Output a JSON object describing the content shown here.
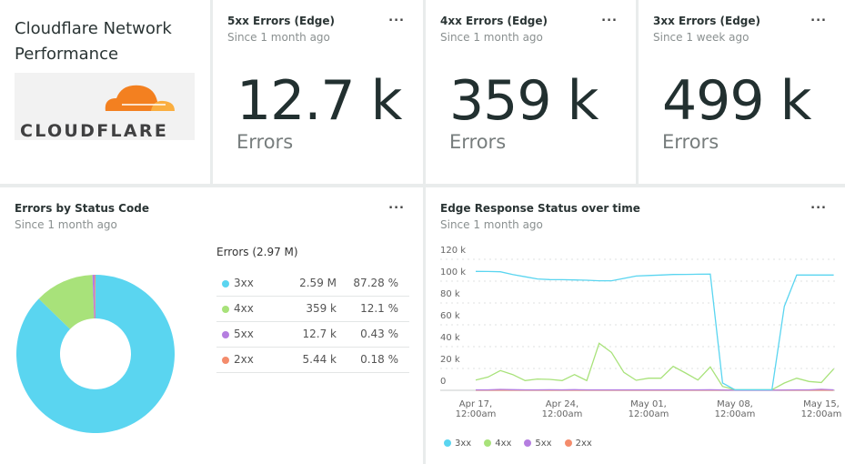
{
  "app": {
    "title": "Cloudflare Network Performance",
    "logo_text": "CLOUDFLARE"
  },
  "billboards": [
    {
      "title": "5xx Errors (Edge)",
      "subtitle": "Since 1 month ago",
      "value": "12.7 k",
      "unit": "Errors",
      "menu": "..."
    },
    {
      "title": "4xx Errors (Edge)",
      "subtitle": "Since 1 month ago",
      "value": "359 k",
      "unit": "Errors",
      "menu": "..."
    },
    {
      "title": "3xx Errors (Edge)",
      "subtitle": "Since 1 week ago",
      "value": "499 k",
      "unit": "Errors",
      "menu": "..."
    }
  ],
  "colors": {
    "3xx": "#5ad5f0",
    "4xx": "#a8e27a",
    "5xx": "#b57ee0",
    "2xx": "#f48c6c"
  },
  "chart_data": [
    {
      "type": "pie",
      "title": "Errors by Status Code",
      "subtitle": "Since 1 month ago",
      "menu": "...",
      "table_header": "Errors (2.97 M)",
      "slices": [
        {
          "name": "3xx",
          "value": "2.59 M",
          "percent": 87.28,
          "percent_label": "87.28 %",
          "color": "#5ad5f0"
        },
        {
          "name": "4xx",
          "value": "359 k",
          "percent": 12.1,
          "percent_label": "12.1 %",
          "color": "#a8e27a"
        },
        {
          "name": "5xx",
          "value": "12.7 k",
          "percent": 0.43,
          "percent_label": "0.43 %",
          "color": "#b57ee0"
        },
        {
          "name": "2xx",
          "value": "5.44 k",
          "percent": 0.18,
          "percent_label": "0.18 %",
          "color": "#f48c6c"
        }
      ]
    },
    {
      "type": "line",
      "title": "Edge Response Status over time",
      "subtitle": "Since 1 month ago",
      "menu": "...",
      "ylim": [
        0,
        120000
      ],
      "yticks": [
        "0",
        "20 k",
        "40 k",
        "60 k",
        "80 k",
        "100 k",
        "120 k"
      ],
      "xticks": [
        {
          "date": "Apr 17",
          "l1": "Apr 17,",
          "l2": "12:00am"
        },
        {
          "date": "Apr 24",
          "l1": "Apr 24,",
          "l2": "12:00am"
        },
        {
          "date": "May 01",
          "l1": "May 01,",
          "l2": "12:00am"
        },
        {
          "date": "May 08",
          "l1": "May 08,",
          "l2": "12:00am"
        },
        {
          "date": "May 15",
          "l1": "May 15,",
          "l2": "12:00am"
        }
      ],
      "x_start": "Apr 17",
      "x_end": "May 16",
      "grid": true,
      "legend_position": "bottom-left",
      "series": [
        {
          "name": "3xx",
          "color": "#5ad5f0",
          "values": [
            108900,
            108800,
            108600,
            106000,
            104000,
            102000,
            101400,
            101300,
            101100,
            100800,
            100300,
            100300,
            102500,
            104700,
            105200,
            105600,
            106100,
            106200,
            106300,
            106400,
            6700,
            500,
            500,
            500,
            500,
            76900,
            105600,
            105600,
            105600,
            105600
          ]
        },
        {
          "name": "4xx",
          "color": "#a8e27a",
          "values": [
            9400,
            12200,
            18100,
            14400,
            8900,
            10300,
            10000,
            8900,
            14400,
            8900,
            43100,
            34700,
            16400,
            9200,
            11100,
            11100,
            21900,
            15800,
            9400,
            21400,
            3600,
            600,
            500,
            500,
            500,
            6700,
            11100,
            8100,
            7200,
            19700
          ]
        },
        {
          "name": "5xx",
          "color": "#b57ee0",
          "values": [
            400,
            400,
            800,
            600,
            400,
            400,
            500,
            400,
            600,
            400,
            400,
            400,
            400,
            400,
            400,
            400,
            400,
            400,
            400,
            500,
            300,
            100,
            100,
            100,
            100,
            300,
            400,
            400,
            900,
            400
          ]
        },
        {
          "name": "2xx",
          "color": "#f48c6c",
          "values": [
            200,
            200,
            200,
            200,
            200,
            200,
            200,
            200,
            200,
            200,
            200,
            200,
            200,
            200,
            200,
            200,
            200,
            200,
            200,
            200,
            200,
            100,
            100,
            100,
            100,
            200,
            200,
            200,
            200,
            200
          ]
        }
      ]
    }
  ]
}
